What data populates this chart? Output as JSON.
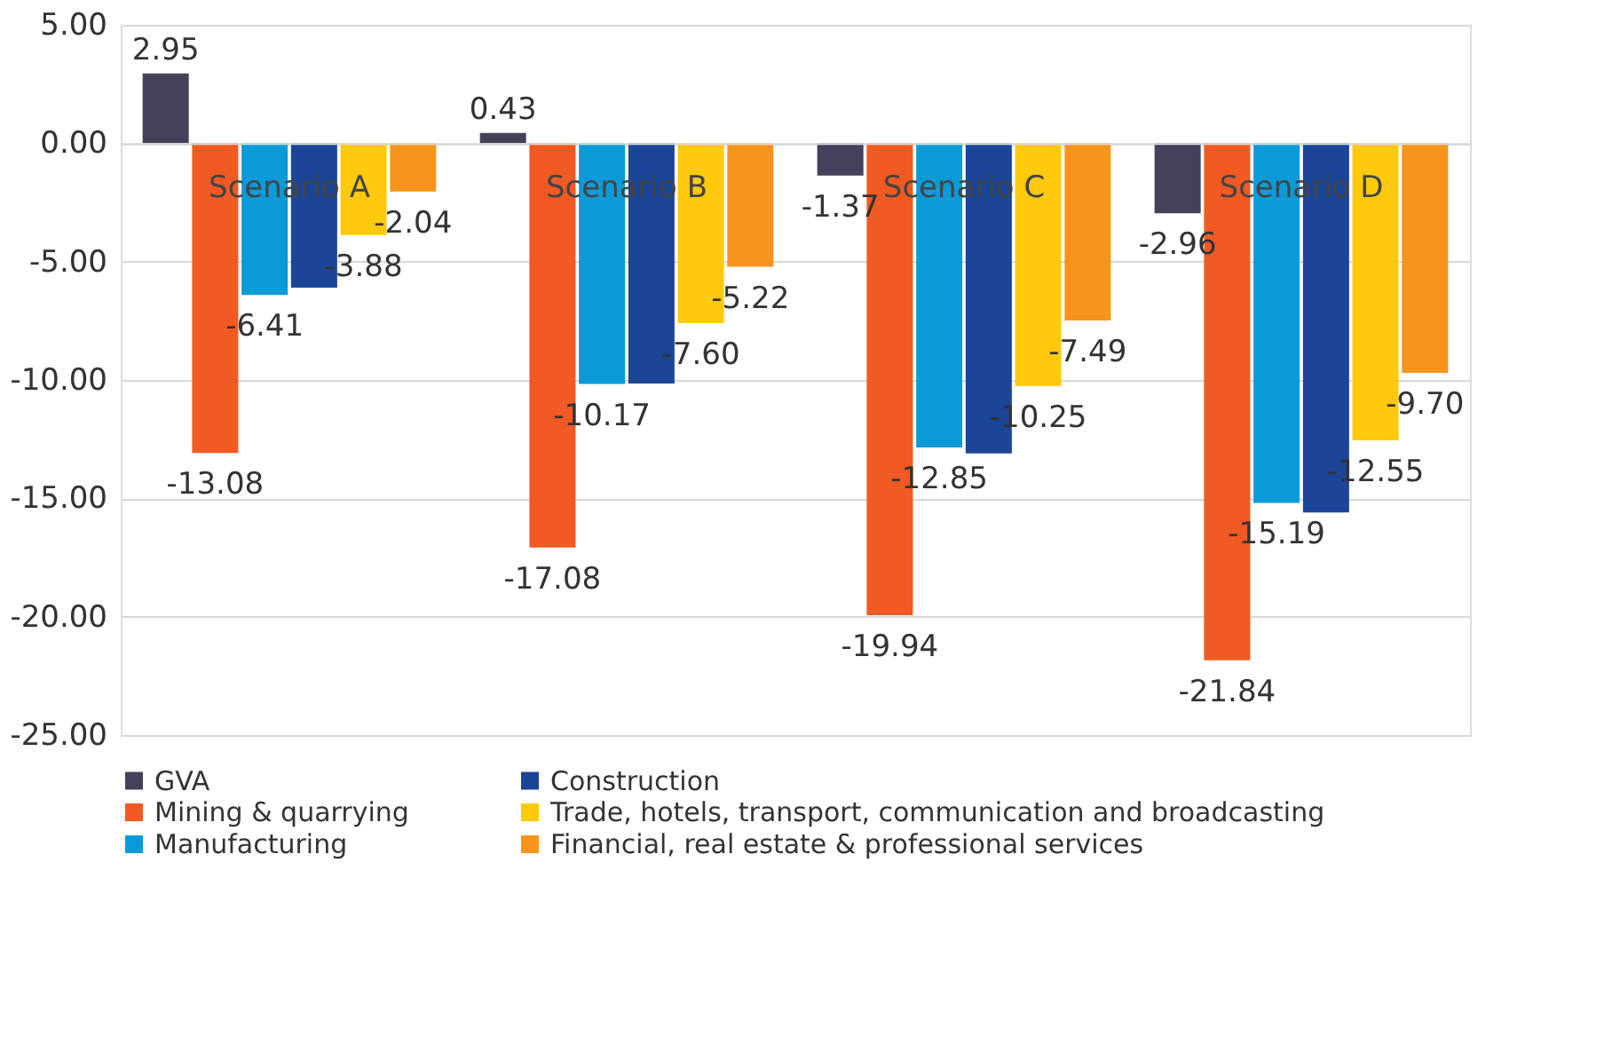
{
  "chart_data": {
    "type": "bar",
    "categories": [
      "Scenario A",
      "Scenario B",
      "Scenario C",
      "Scenario D"
    ],
    "series": [
      {
        "name": "GVA",
        "color": "#46405a",
        "values": [
          2.95,
          0.43,
          -1.37,
          -2.96
        ],
        "value_labels": [
          "2.95",
          "0.43",
          "-1.37",
          "-2.96"
        ]
      },
      {
        "name": "Mining & quarrying",
        "color": "#f15a22",
        "values": [
          -13.08,
          -17.08,
          -19.94,
          -21.84
        ],
        "value_labels": [
          "-13.08",
          "-17.08",
          "-19.94",
          "-21.84"
        ]
      },
      {
        "name": "Manufacturing",
        "color": "#0a9ad8",
        "values": [
          -6.41,
          -10.17,
          -12.85,
          -15.19
        ],
        "value_labels": [
          "-6.41",
          "-10.17",
          "-12.85",
          "-15.19"
        ]
      },
      {
        "name": "Construction",
        "color": "#1b4597",
        "values": [
          -6.1,
          -10.15,
          -13.1,
          -15.6
        ],
        "value_labels": [
          null,
          null,
          null,
          null
        ]
      },
      {
        "name": "Trade, hotels, transport, communication and broadcasting",
        "color": "#ffc90e",
        "values": [
          -3.88,
          -7.6,
          -10.25,
          -12.55
        ],
        "value_labels": [
          "-3.88",
          "-7.60",
          "-10.25",
          "-12.55"
        ]
      },
      {
        "name": "Financial, real estate & professional services",
        "color": "#f7941d",
        "values": [
          -2.04,
          -5.22,
          -7.49,
          -9.7
        ],
        "value_labels": [
          "-2.04",
          "-5.22",
          "-7.49",
          "-9.70"
        ]
      }
    ],
    "ylim": [
      -25,
      5
    ],
    "yticks": [
      {
        "value": 5,
        "label": "5.00"
      },
      {
        "value": 0,
        "label": "0.00"
      },
      {
        "value": -5,
        "label": "-5.00"
      },
      {
        "value": -10,
        "label": "-10.00"
      },
      {
        "value": -15,
        "label": "-15.00"
      },
      {
        "value": -20,
        "label": "-20.00"
      },
      {
        "value": -25,
        "label": "-25.00"
      }
    ],
    "grid": "y",
    "legend": "bottom"
  }
}
